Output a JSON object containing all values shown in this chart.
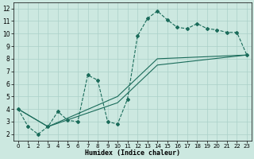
{
  "xlabel": "Humidex (Indice chaleur)",
  "bg_color": "#cce8e0",
  "line_color": "#1a6b5a",
  "grid_color": "#aad0c8",
  "xlim": [
    -0.5,
    23.5
  ],
  "ylim": [
    1.5,
    12.5
  ],
  "xticks": [
    0,
    1,
    2,
    3,
    4,
    5,
    6,
    7,
    8,
    9,
    10,
    11,
    12,
    13,
    14,
    15,
    16,
    17,
    18,
    19,
    20,
    21,
    22,
    23
  ],
  "yticks": [
    2,
    3,
    4,
    5,
    6,
    7,
    8,
    9,
    10,
    11,
    12
  ],
  "curve1_x": [
    0,
    1,
    2,
    3,
    4,
    5,
    6,
    7,
    8,
    9,
    10,
    11,
    12,
    13,
    14,
    15,
    16,
    17,
    18,
    19,
    20,
    21,
    22,
    23
  ],
  "curve1_y": [
    4.0,
    2.6,
    2.0,
    2.6,
    3.8,
    3.1,
    3.0,
    6.7,
    6.3,
    3.0,
    2.8,
    4.8,
    9.8,
    11.2,
    11.8,
    11.1,
    10.5,
    10.4,
    10.8,
    10.4,
    10.3,
    10.1,
    10.1,
    8.3
  ],
  "curve2_x": [
    0,
    3,
    10,
    14,
    23
  ],
  "curve2_y": [
    4.0,
    2.6,
    4.5,
    7.5,
    8.3
  ],
  "curve3_x": [
    0,
    3,
    10,
    14,
    23
  ],
  "curve3_y": [
    4.0,
    2.6,
    5.0,
    8.0,
    8.3
  ]
}
